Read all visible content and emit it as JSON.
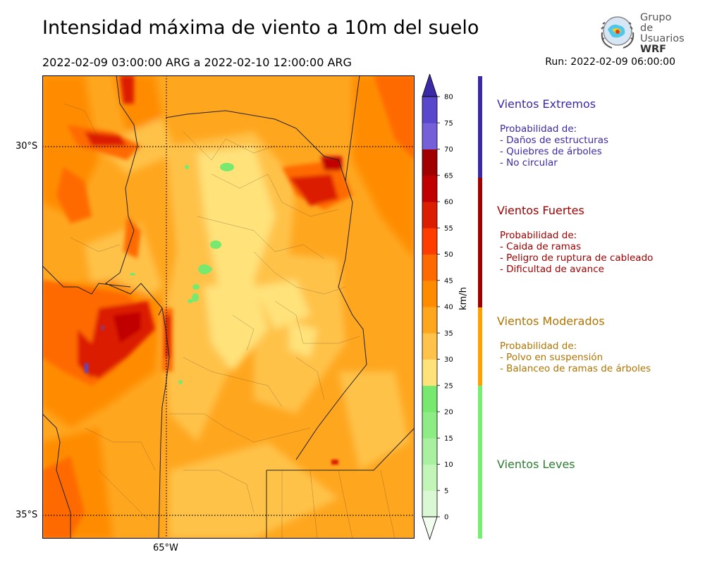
{
  "header": {
    "title": "Intensidad máxima de viento a 10m del suelo",
    "period": "2022-02-09 03:00:00 ARG  a  2022-02-10 12:00:00 ARG",
    "run": "Run: 2022-02-09 06:00:00"
  },
  "logo": {
    "line1": "Grupo de",
    "line2": "Usuarios",
    "line3": "WRF"
  },
  "map": {
    "lat_labels": [
      "30°S",
      "35°S"
    ],
    "lon_labels": [
      "65°W"
    ],
    "grid_style": "dotted",
    "projection_region": "Central Argentina"
  },
  "colorbar": {
    "unit": "km/h",
    "ticks": [
      "0",
      "5",
      "10",
      "15",
      "20",
      "25",
      "30",
      "35",
      "40",
      "45",
      "50",
      "55",
      "60",
      "65",
      "70",
      "75",
      "80"
    ],
    "colors": [
      "#f2fdf0",
      "#d9f8d3",
      "#c3f5b9",
      "#a9f1a0",
      "#8eec85",
      "#76e96e",
      "#ffe27a",
      "#ffc24a",
      "#ffa61f",
      "#ff8c00",
      "#ff6a00",
      "#ff3d00",
      "#dc1e00",
      "#c00000",
      "#a00000",
      "#7560da",
      "#5a48cc",
      "#463ab8",
      "#3a2aa8"
    ],
    "extend": "both"
  },
  "categories": [
    {
      "title": "Vientos Extremos",
      "color": "#3a2aa8",
      "lines": [
        "Probabilidad de:",
        "- Daños de estructuras",
        "- Quiebres de árboles",
        "- No circular"
      ]
    },
    {
      "title": "Vientos Fuertes",
      "color": "#a00000",
      "lines": [
        "Probabilidad de:",
        "- Caida de ramas",
        "- Peligro de ruptura de cableado",
        "- Dificultad de avance"
      ]
    },
    {
      "title": "Vientos Moderados",
      "color": "#b07400",
      "lines": [
        "Probabilidad de:",
        "- Polvo en suspensión",
        "- Balanceo de ramas de árboles"
      ]
    },
    {
      "title": "Vientos Leves",
      "color": "#2e7d32",
      "lines": []
    }
  ],
  "bands": {
    "extremos": "#3a2aa8",
    "fuertes": "#a00000",
    "moderados": "#ff9f00",
    "leves": "#76ef70"
  }
}
